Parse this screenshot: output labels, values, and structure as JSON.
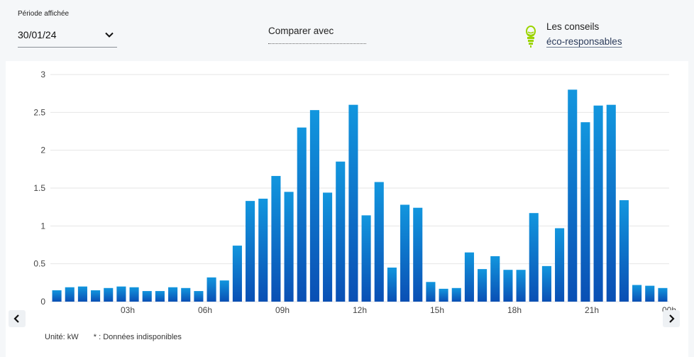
{
  "period": {
    "label": "Période affichée",
    "value": "30/01/24"
  },
  "compare": {
    "label": "Comparer avec"
  },
  "tips": {
    "line1": "Les conseils",
    "link": "éco-responsables"
  },
  "footer": {
    "unit": "Unité: kW",
    "note": "* : Données indisponibles"
  },
  "colors": {
    "bar_top": "#1296de",
    "bar_bottom": "#0a4fb4",
    "grid": "#e6e6e6"
  },
  "chart_data": {
    "type": "bar",
    "ylim": [
      0,
      3
    ],
    "yticks": [
      "0",
      "0.5",
      "1",
      "1.5",
      "2",
      "2.5",
      "3"
    ],
    "xticks": [
      "03h",
      "06h",
      "09h",
      "12h",
      "15h",
      "18h",
      "21h",
      "00h"
    ],
    "values": [
      0.15,
      0.19,
      0.2,
      0.15,
      0.18,
      0.2,
      0.19,
      0.14,
      0.14,
      0.19,
      0.18,
      0.14,
      0.32,
      0.28,
      0.74,
      1.33,
      1.36,
      1.66,
      1.45,
      2.3,
      2.53,
      1.44,
      1.85,
      2.6,
      1.14,
      1.58,
      0.45,
      1.28,
      1.24,
      0.26,
      0.17,
      0.18,
      0.65,
      0.43,
      0.6,
      0.42,
      0.42,
      1.17,
      0.47,
      0.97,
      2.8,
      2.37,
      2.59,
      2.6,
      1.34,
      0.22,
      0.21,
      0.18
    ]
  }
}
